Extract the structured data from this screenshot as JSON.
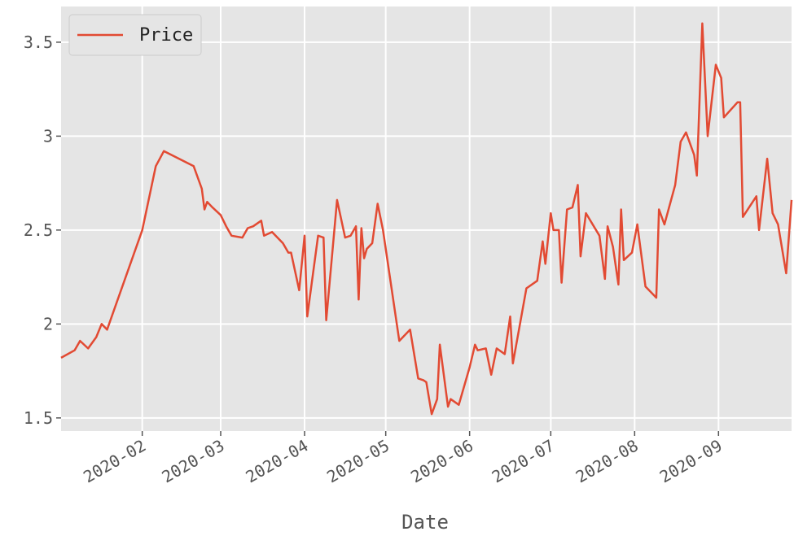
{
  "chart_data": {
    "type": "line",
    "x": [
      "2020-01-02",
      "2020-01-07",
      "2020-01-09",
      "2020-01-12",
      "2020-01-15",
      "2020-01-17",
      "2020-01-19",
      "2020-02-01",
      "2020-02-06",
      "2020-02-09",
      "2020-02-20",
      "2020-02-23",
      "2020-02-24",
      "2020-02-25",
      "2020-02-27",
      "2020-03-01",
      "2020-03-03",
      "2020-03-05",
      "2020-03-09",
      "2020-03-11",
      "2020-03-13",
      "2020-03-16",
      "2020-03-17",
      "2020-03-20",
      "2020-03-24",
      "2020-03-26",
      "2020-03-27",
      "2020-03-30",
      "2020-04-01",
      "2020-04-02",
      "2020-04-06",
      "2020-04-08",
      "2020-04-09",
      "2020-04-13",
      "2020-04-16",
      "2020-04-18",
      "2020-04-20",
      "2020-04-21",
      "2020-04-22",
      "2020-04-23",
      "2020-04-24",
      "2020-04-26",
      "2020-04-28",
      "2020-04-30",
      "2020-05-06",
      "2020-05-10",
      "2020-05-13",
      "2020-05-15",
      "2020-05-16",
      "2020-05-18",
      "2020-05-20",
      "2020-05-21",
      "2020-05-24",
      "2020-05-25",
      "2020-05-28",
      "2020-06-01",
      "2020-06-03",
      "2020-06-04",
      "2020-06-07",
      "2020-06-09",
      "2020-06-11",
      "2020-06-14",
      "2020-06-16",
      "2020-06-17",
      "2020-06-22",
      "2020-06-26",
      "2020-06-28",
      "2020-06-29",
      "2020-07-01",
      "2020-07-02",
      "2020-07-04",
      "2020-07-05",
      "2020-07-07",
      "2020-07-09",
      "2020-07-11",
      "2020-07-12",
      "2020-07-14",
      "2020-07-19",
      "2020-07-21",
      "2020-07-22",
      "2020-07-24",
      "2020-07-26",
      "2020-07-27",
      "2020-07-28",
      "2020-07-31",
      "2020-08-02",
      "2020-08-05",
      "2020-08-09",
      "2020-08-10",
      "2020-08-12",
      "2020-08-16",
      "2020-08-18",
      "2020-08-20",
      "2020-08-23",
      "2020-08-24",
      "2020-08-26",
      "2020-08-28",
      "2020-08-31",
      "2020-09-02",
      "2020-09-03",
      "2020-09-08",
      "2020-09-09",
      "2020-09-10",
      "2020-09-15",
      "2020-09-16",
      "2020-09-19",
      "2020-09-21",
      "2020-09-23",
      "2020-09-26",
      "2020-09-28"
    ],
    "series": [
      {
        "name": "Price",
        "color": "#e24a33",
        "values": [
          1.82,
          1.86,
          1.91,
          1.87,
          1.93,
          2.0,
          1.97,
          2.5,
          2.84,
          2.92,
          2.84,
          2.72,
          2.61,
          2.65,
          2.62,
          2.58,
          2.52,
          2.47,
          2.46,
          2.51,
          2.52,
          2.55,
          2.47,
          2.49,
          2.43,
          2.38,
          2.38,
          2.18,
          2.47,
          2.04,
          2.47,
          2.46,
          2.02,
          2.66,
          2.46,
          2.47,
          2.52,
          2.13,
          2.51,
          2.35,
          2.4,
          2.43,
          2.64,
          2.5,
          1.91,
          1.97,
          1.71,
          1.7,
          1.69,
          1.52,
          1.6,
          1.89,
          1.56,
          1.6,
          1.57,
          1.77,
          1.89,
          1.86,
          1.87,
          1.73,
          1.87,
          1.84,
          2.04,
          1.79,
          2.19,
          2.23,
          2.44,
          2.32,
          2.59,
          2.5,
          2.5,
          2.22,
          2.61,
          2.62,
          2.74,
          2.36,
          2.59,
          2.47,
          2.24,
          2.52,
          2.41,
          2.21,
          2.61,
          2.34,
          2.38,
          2.53,
          2.2,
          2.14,
          2.61,
          2.53,
          2.74,
          2.97,
          3.02,
          2.9,
          2.79,
          3.6,
          3.0,
          3.38,
          3.31,
          3.1,
          3.18,
          3.18,
          2.57,
          2.68,
          2.5,
          2.88,
          2.59,
          2.53,
          2.27,
          2.66
        ]
      }
    ],
    "xlabel": "Date",
    "xlim": [
      "2020-01-02",
      "2020-09-28"
    ],
    "xticks": [
      {
        "value": "2020-02-01",
        "label": "2020-02"
      },
      {
        "value": "2020-03-01",
        "label": "2020-03"
      },
      {
        "value": "2020-04-01",
        "label": "2020-04"
      },
      {
        "value": "2020-05-01",
        "label": "2020-05"
      },
      {
        "value": "2020-06-01",
        "label": "2020-06"
      },
      {
        "value": "2020-07-01",
        "label": "2020-07"
      },
      {
        "value": "2020-08-01",
        "label": "2020-08"
      },
      {
        "value": "2020-09-01",
        "label": "2020-09"
      }
    ],
    "ylim": [
      1.43,
      3.69
    ],
    "yticks": [
      1.5,
      2.0,
      2.5,
      3.0,
      3.5
    ],
    "grid": true,
    "legend": "upper left"
  }
}
